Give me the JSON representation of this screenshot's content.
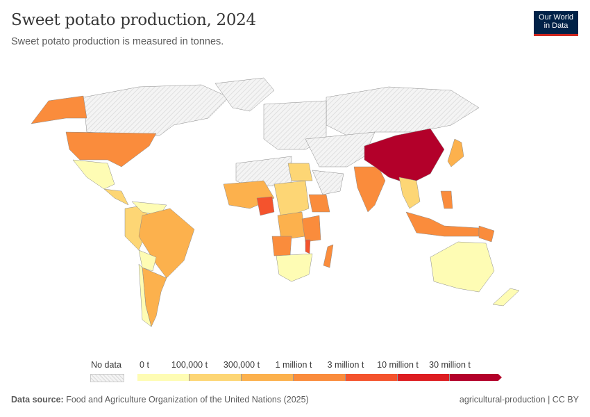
{
  "header": {
    "title": "Sweet potato production, 2024",
    "subtitle": "Sweet potato production is measured in tonnes.",
    "logo_line1": "Our World",
    "logo_line2": "in Data"
  },
  "legend": {
    "no_data_label": "No data",
    "no_data_color": "#e8e8e8",
    "ticks": [
      "0 t",
      "100,000 t",
      "300,000 t",
      "1 million t",
      "3 million t",
      "10 million t",
      "30 million t"
    ],
    "bin_colors": [
      "#fefcb4",
      "#fdd675",
      "#fcb14d",
      "#fa8c3c",
      "#f4532d",
      "#dd1d21",
      "#b3002a"
    ]
  },
  "map_values": {
    "China": "30 million t +",
    "Nigeria": "3 million t – 10 million t",
    "Malawi": "3 million t – 10 million t",
    "United States": "1 million t – 3 million t",
    "India": "1 million t – 3 million t",
    "Indonesia": "1 million t – 3 million t",
    "Tanzania": "1 million t – 3 million t",
    "Angola": "1 million t – 3 million t",
    "Ethiopia": "1 million t – 3 million t",
    "Uganda": "1 million t – 3 million t",
    "Madagascar": "1 million t – 3 million t",
    "Papua New Guinea": "1 million t – 3 million t",
    "Brazil": "300,000 t – 1 million t",
    "Japan": "300,000 t – 1 million t",
    "Argentina": "300,000 t – 1 million t",
    "Mali": "300,000 t – 1 million t",
    "Sudan": "100,000 t – 300,000 t",
    "Australia": "0 t – 100,000 t",
    "Mexico": "0 t – 100,000 t",
    "Egypt": "100,000 t – 300,000 t"
  },
  "footer": {
    "source_label": "Data source:",
    "source": "Food and Agriculture Organization of the United Nations (2025)",
    "right": "agricultural-production | CC BY"
  }
}
